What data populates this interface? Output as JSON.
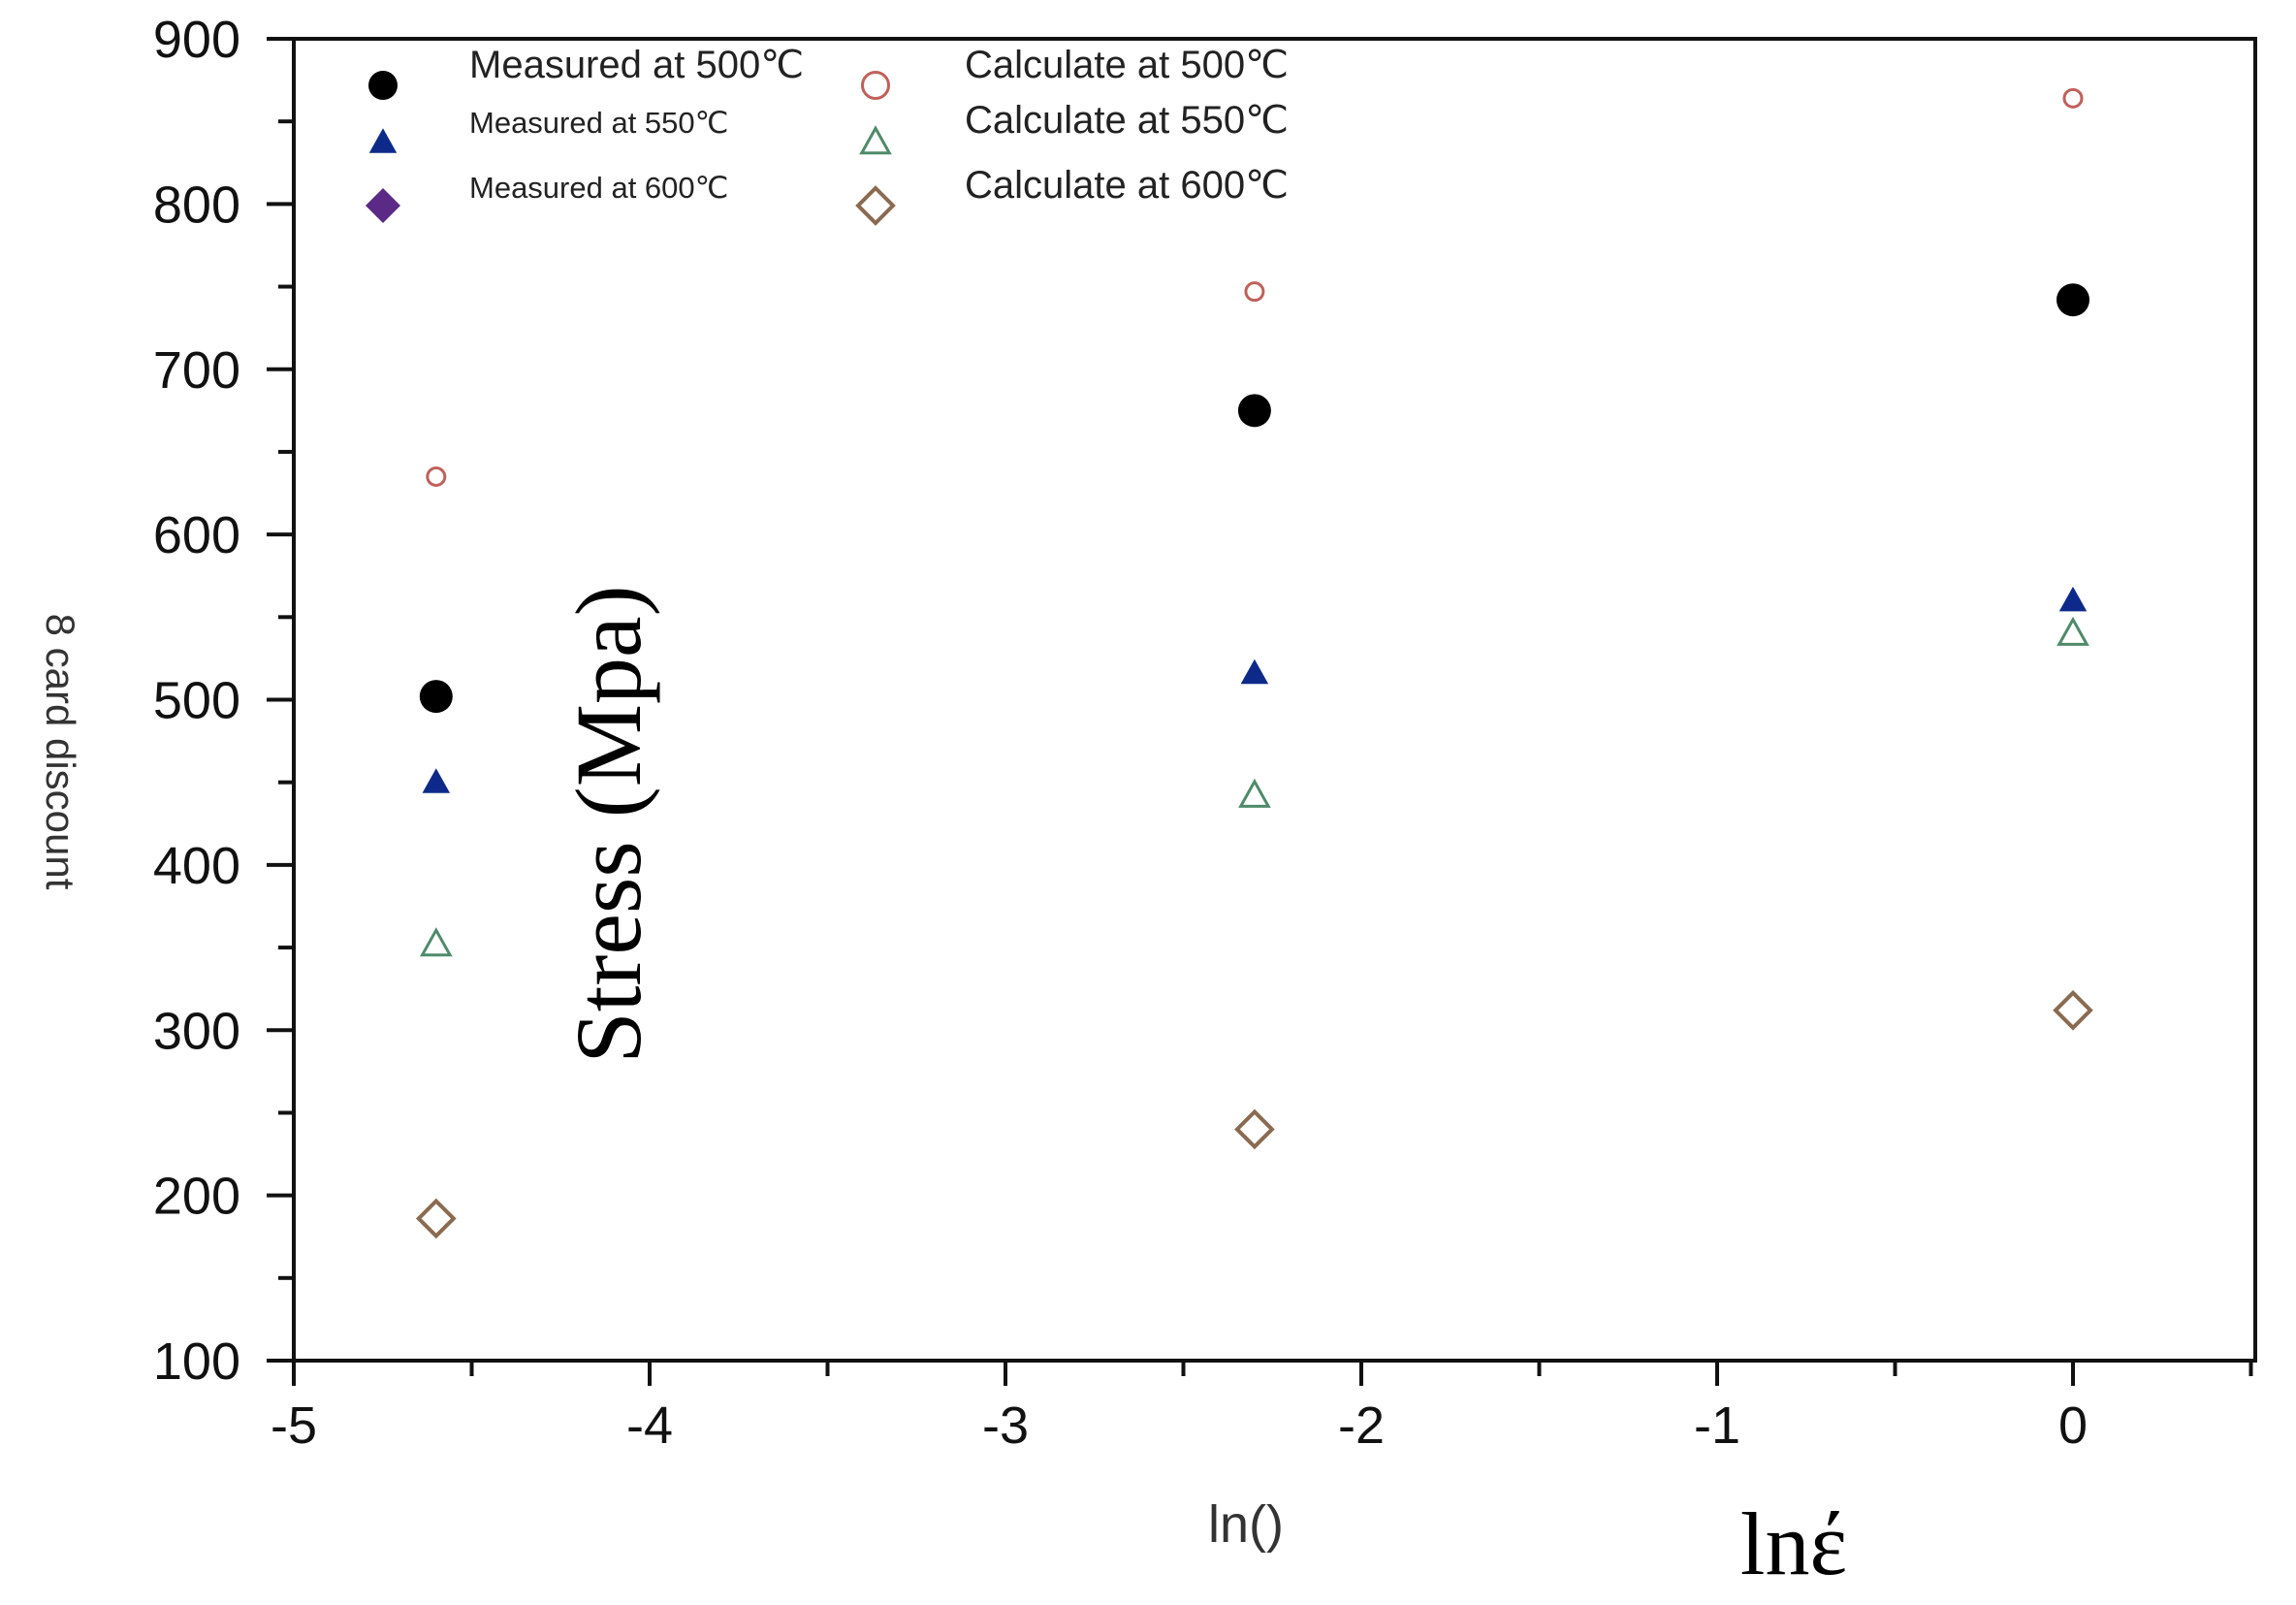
{
  "chart_data": {
    "type": "scatter",
    "title": "",
    "xlabel": "ln()",
    "xlabel_overlay": "lnέ",
    "ylabel": "8 card discount",
    "ylabel_overlay": "Stress (Mpa)",
    "xlim": [
      -5,
      0.5
    ],
    "ylim": [
      100,
      900
    ],
    "x_ticks": [
      "-5",
      "-4",
      "-3",
      "-2",
      "-1",
      "0"
    ],
    "y_ticks": [
      "900",
      "800",
      "700",
      "600",
      "500",
      "400",
      "300",
      "200",
      "100"
    ],
    "grid": false,
    "legend_position": "top-left",
    "series": [
      {
        "name": "Measured at 500℃",
        "marker": "circle-filled",
        "color": "#000000",
        "points": [
          {
            "x": -4.6,
            "y": 502
          },
          {
            "x": -2.3,
            "y": 675
          },
          {
            "x": 0,
            "y": 742
          }
        ]
      },
      {
        "name": "Measured at 550℃",
        "marker": "triangle-filled",
        "color": "#0d2a8a",
        "points": [
          {
            "x": -4.6,
            "y": 451
          },
          {
            "x": -2.3,
            "y": 517
          },
          {
            "x": 0,
            "y": 561
          }
        ]
      },
      {
        "name": "Measured at 600℃",
        "marker": "diamond-filled",
        "color": "#5b2a86",
        "points": []
      },
      {
        "name": "Calculate at 500℃",
        "marker": "circle-open",
        "color": "#c0605a",
        "points": [
          {
            "x": -4.6,
            "y": 635
          },
          {
            "x": -2.3,
            "y": 747
          },
          {
            "x": 0,
            "y": 864
          }
        ]
      },
      {
        "name": "Calculate at 550℃",
        "marker": "triangle-open",
        "color": "#4f8a6a",
        "points": [
          {
            "x": -4.6,
            "y": 353
          },
          {
            "x": -2.3,
            "y": 443
          },
          {
            "x": 0,
            "y": 541
          }
        ]
      },
      {
        "name": "Calculate at 600℃",
        "marker": "diamond-open",
        "color": "#8a6a50",
        "points": [
          {
            "x": -4.6,
            "y": 186
          },
          {
            "x": -2.3,
            "y": 240
          },
          {
            "x": 0,
            "y": 312
          }
        ]
      }
    ]
  }
}
